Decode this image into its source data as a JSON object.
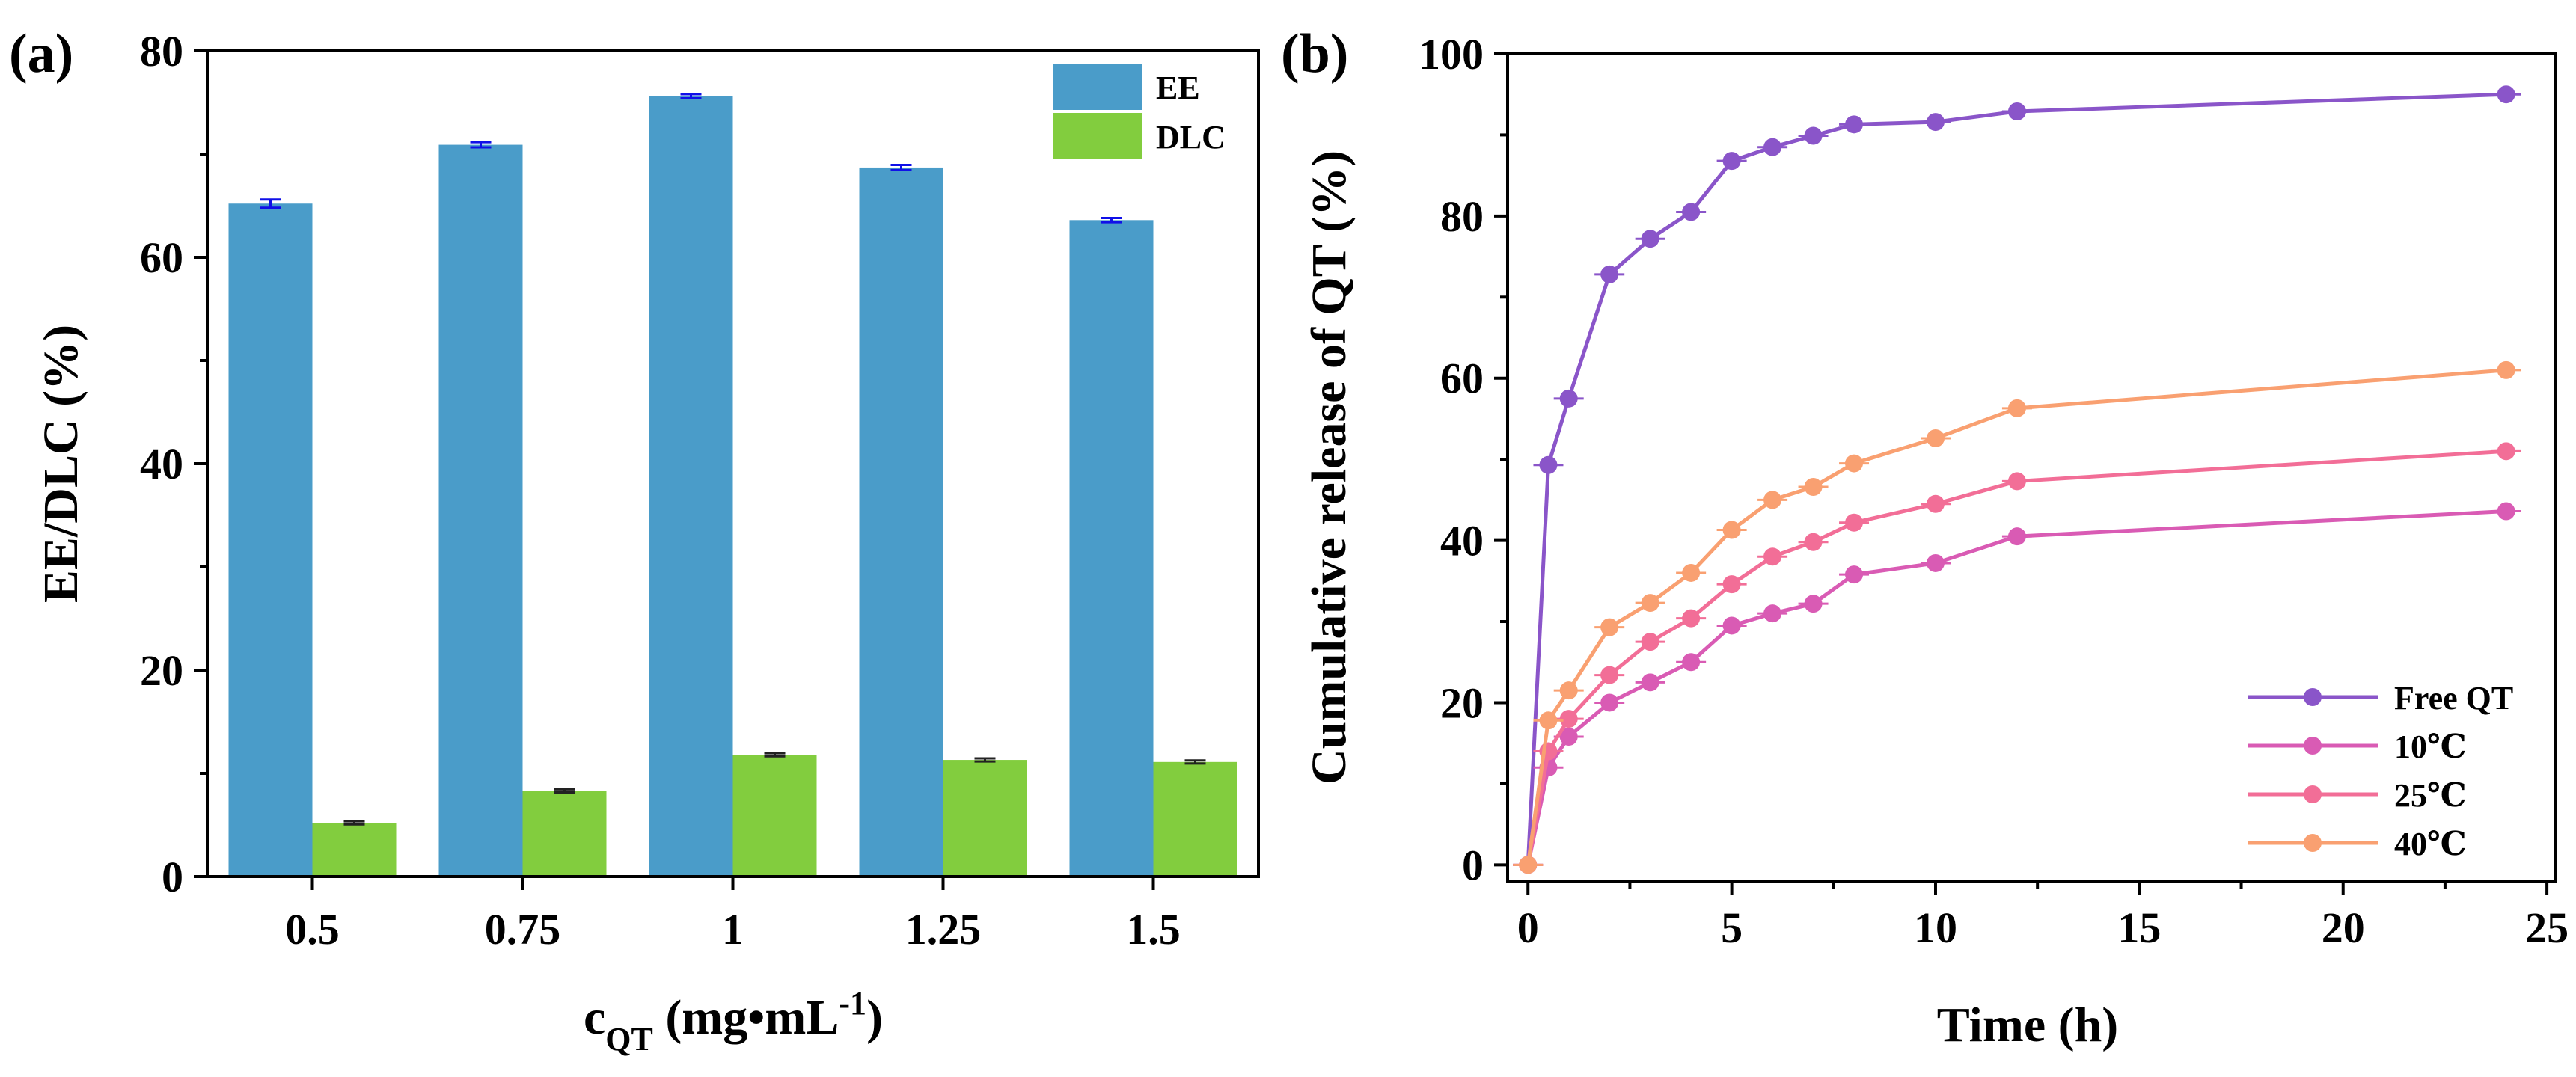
{
  "panels": {
    "a_label": "(a)",
    "b_label": "(b)"
  },
  "chart_data": [
    {
      "type": "bar",
      "panel": "(a)",
      "categories": [
        "0.5",
        "0.75",
        "1",
        "1.25",
        "1.5"
      ],
      "series": [
        {
          "name": "EE",
          "color": "#4a9cc9",
          "values": [
            65.2,
            70.9,
            75.6,
            68.7,
            63.6
          ],
          "errors": [
            0.4,
            0.25,
            0.2,
            0.25,
            0.2
          ],
          "error_color": "#1010e8"
        },
        {
          "name": "DLC",
          "color": "#82cd3e",
          "values": [
            5.2,
            8.3,
            11.8,
            11.3,
            11.1
          ],
          "errors": [
            0.15,
            0.15,
            0.15,
            0.15,
            0.15
          ],
          "error_color": "#222222"
        }
      ],
      "ylim": [
        0,
        80
      ],
      "yticks": [
        0,
        20,
        40,
        60,
        80
      ],
      "ylabel": "EE/DLC (%)",
      "xlabel_main": "c",
      "xlabel_sub": "QT",
      "xlabel_units": " (mg•mL",
      "xlabel_sup": "-1",
      "xlabel_close": ")",
      "legend": "top-right"
    },
    {
      "type": "line",
      "panel": "(b)",
      "x": [
        0,
        0.5,
        1,
        2,
        3,
        4,
        5,
        6,
        7,
        8,
        10,
        12,
        24
      ],
      "series": [
        {
          "name": "Free QT",
          "color": "#8a55c9",
          "values": [
            0,
            49.3,
            57.5,
            72.8,
            77.2,
            80.5,
            86.8,
            88.5,
            89.9,
            91.3,
            91.6,
            92.9,
            95.0
          ]
        },
        {
          "name": "10℃",
          "color": "#d95bb4",
          "values": [
            0,
            12.0,
            15.8,
            20.0,
            22.5,
            25.0,
            29.5,
            31.0,
            32.2,
            35.8,
            37.2,
            40.5,
            43.6
          ]
        },
        {
          "name": "25℃",
          "color": "#f26e97",
          "values": [
            0,
            14.0,
            18.0,
            23.4,
            27.5,
            30.4,
            34.6,
            38.0,
            39.8,
            42.2,
            44.5,
            47.3,
            51.0
          ]
        },
        {
          "name": "40℃",
          "color": "#f9a071",
          "values": [
            0,
            17.8,
            21.5,
            29.3,
            32.3,
            36.0,
            41.3,
            45.0,
            46.6,
            49.5,
            52.6,
            56.3,
            61.0
          ]
        }
      ],
      "xlim": [
        -0.5,
        25.2
      ],
      "xticks": [
        0,
        5,
        10,
        15,
        20,
        25
      ],
      "ylim": [
        -2,
        100
      ],
      "yticks": [
        0,
        20,
        40,
        60,
        80,
        100
      ],
      "xlabel": "Time (h)",
      "ylabel": "Cumulative release of QT (%)",
      "legend": "bottom-right"
    }
  ]
}
